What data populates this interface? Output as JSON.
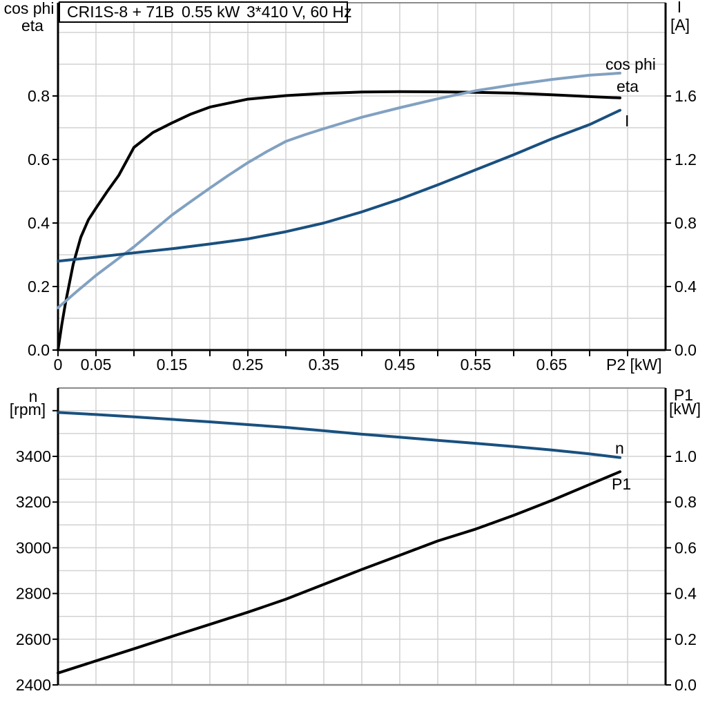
{
  "title_parts": [
    "CRI1S-8 + 71B",
    "0.55 kW",
    "3*410 V, 60 Hz"
  ],
  "colors": {
    "cos_phi": "#82a1c1",
    "dark_blue": "#19507f",
    "curve_black": "#000000",
    "grid": "#d2d2d2",
    "frame": "#8a8a8a",
    "axis": "#000000"
  },
  "top_chart": {
    "left_axis_line1": "cos phi",
    "left_axis_line2": "eta",
    "right_axis_line1": "I",
    "right_axis_line2": "[A]",
    "x_axis_label": "P2 [kW]",
    "curve_labels": {
      "cos_phi": "cos phi",
      "eta": "eta",
      "current": "I"
    }
  },
  "bottom_chart": {
    "left_axis_line1": "n",
    "left_axis_line2": "[rpm]",
    "right_axis_line1": "P1",
    "right_axis_line2": "[kW]",
    "curve_labels": {
      "speed": "n",
      "power": "P1"
    }
  },
  "chart_data": [
    {
      "type": "line",
      "title": "CRI1S-8 + 71B 0.55 kW 3*410 V, 60 Hz",
      "xlabel": "P2 [kW]",
      "ylabel_left": "cos phi / eta",
      "ylabel_right": "I [A]",
      "xlim": [
        0,
        0.8
      ],
      "ylim_left": [
        0,
        1.0
      ],
      "ylim_right": [
        0,
        2.0
      ],
      "grid": true,
      "legend_position": "end-of-curve",
      "x_ticks": [
        0,
        0.05,
        0.1,
        0.15,
        0.2,
        0.25,
        0.3,
        0.35,
        0.4,
        0.45,
        0.5,
        0.55,
        0.6,
        0.65,
        0.7,
        0.75
      ],
      "x_tick_labels": [
        "0",
        "0.05",
        "",
        "0.15",
        "",
        "0.25",
        "",
        "0.35",
        "",
        "0.45",
        "",
        "0.55",
        "",
        "0.65",
        "",
        ""
      ],
      "left_ticks": [
        0,
        0.2,
        0.4,
        0.6,
        0.8
      ],
      "left_tick_labels": [
        "0.0",
        "0.2",
        "0.4",
        "0.6",
        "0.8"
      ],
      "right_ticks": [
        0,
        0.4,
        0.8,
        1.2,
        1.6
      ],
      "right_tick_labels": [
        "0.0",
        "0.4",
        "0.8",
        "1.2",
        "1.6"
      ],
      "series": [
        {
          "name": "eta",
          "axis": "left",
          "color": "#000000",
          "x": [
            0,
            0.005,
            0.01,
            0.02,
            0.03,
            0.04,
            0.05,
            0.065,
            0.08,
            0.1,
            0.125,
            0.15,
            0.175,
            0.2,
            0.25,
            0.3,
            0.35,
            0.4,
            0.45,
            0.5,
            0.55,
            0.6,
            0.65,
            0.7,
            0.74
          ],
          "y": [
            0,
            0.08,
            0.15,
            0.27,
            0.355,
            0.41,
            0.447,
            0.5,
            0.55,
            0.638,
            0.685,
            0.715,
            0.743,
            0.765,
            0.79,
            0.801,
            0.808,
            0.8125,
            0.8135,
            0.813,
            0.8115,
            0.809,
            0.804,
            0.798,
            0.794
          ]
        },
        {
          "name": "cos phi",
          "axis": "left",
          "color": "#82a1c1",
          "x": [
            0,
            0.025,
            0.05,
            0.075,
            0.1,
            0.125,
            0.15,
            0.175,
            0.2,
            0.225,
            0.25,
            0.275,
            0.3,
            0.325,
            0.35,
            0.4,
            0.45,
            0.5,
            0.55,
            0.6,
            0.65,
            0.7,
            0.74
          ],
          "y": [
            0.133,
            0.185,
            0.235,
            0.28,
            0.325,
            0.375,
            0.425,
            0.468,
            0.51,
            0.551,
            0.59,
            0.625,
            0.657,
            0.678,
            0.697,
            0.733,
            0.763,
            0.791,
            0.8165,
            0.8355,
            0.852,
            0.8655,
            0.872
          ]
        },
        {
          "name": "I",
          "axis": "right",
          "color": "#19507f",
          "x": [
            0,
            0.05,
            0.1,
            0.15,
            0.2,
            0.25,
            0.3,
            0.35,
            0.4,
            0.45,
            0.5,
            0.55,
            0.6,
            0.65,
            0.7,
            0.74
          ],
          "y": [
            0.56,
            0.585,
            0.612,
            0.638,
            0.668,
            0.7,
            0.745,
            0.8,
            0.87,
            0.95,
            1.04,
            1.135,
            1.23,
            1.33,
            1.42,
            1.51
          ]
        }
      ]
    },
    {
      "type": "line",
      "title": "",
      "xlabel": "",
      "ylabel_left": "n [rpm]",
      "ylabel_right": "P1 [kW]",
      "xlim": [
        0,
        0.8
      ],
      "ylim_left": [
        2400,
        3700
      ],
      "ylim_right": [
        0,
        1.3
      ],
      "grid": true,
      "legend_position": "end-of-curve",
      "left_ticks": [
        2400,
        2600,
        2800,
        3000,
        3200,
        3400,
        3600
      ],
      "left_tick_labels": [
        "2400",
        "2600",
        "2800",
        "3000",
        "3200",
        "3400",
        ""
      ],
      "right_ticks": [
        0,
        0.2,
        0.4,
        0.6,
        0.8,
        1.0
      ],
      "right_tick_labels": [
        "0.0",
        "0.2",
        "0.4",
        "0.6",
        "0.8",
        "1.0"
      ],
      "series": [
        {
          "name": "n",
          "axis": "left",
          "color": "#19507f",
          "x": [
            0,
            0.05,
            0.1,
            0.15,
            0.2,
            0.25,
            0.3,
            0.35,
            0.4,
            0.45,
            0.5,
            0.55,
            0.6,
            0.65,
            0.7,
            0.74
          ],
          "y": [
            3592,
            3583,
            3573,
            3562,
            3551,
            3539,
            3527,
            3512,
            3497,
            3484,
            3470,
            3457,
            3443,
            3428,
            3411,
            3395
          ]
        },
        {
          "name": "P1",
          "axis": "right",
          "color": "#000000",
          "x": [
            0,
            0.05,
            0.1,
            0.15,
            0.2,
            0.25,
            0.3,
            0.35,
            0.4,
            0.45,
            0.5,
            0.55,
            0.6,
            0.65,
            0.7,
            0.74
          ],
          "y": [
            0.052,
            0.105,
            0.158,
            0.212,
            0.265,
            0.318,
            0.375,
            0.44,
            0.505,
            0.567,
            0.63,
            0.682,
            0.742,
            0.807,
            0.877,
            0.933
          ]
        }
      ]
    }
  ]
}
